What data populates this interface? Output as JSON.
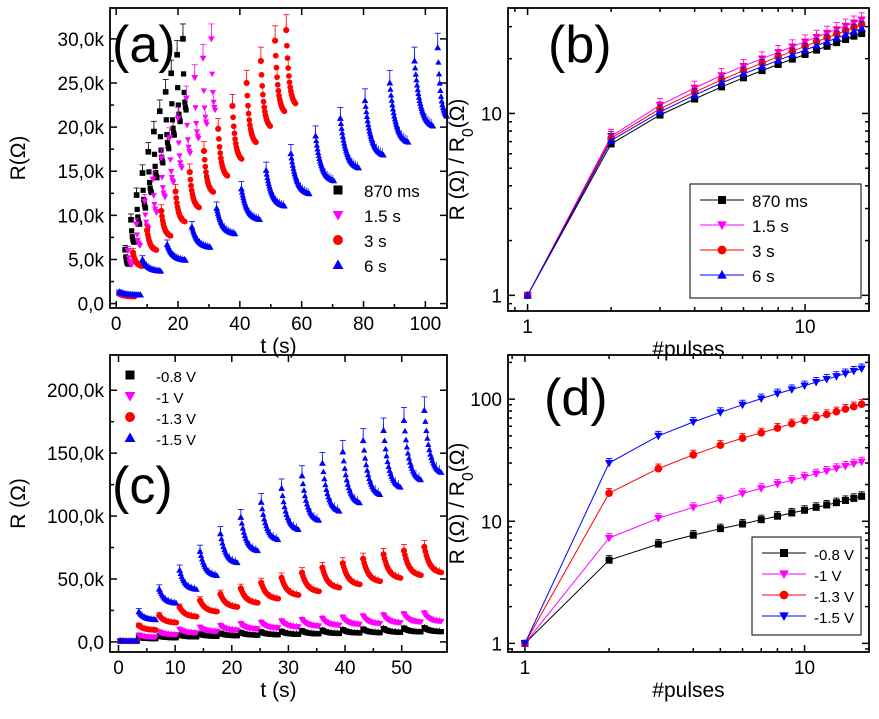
{
  "colors": {
    "black": "#000000",
    "magenta": "#ff00ff",
    "red": "#ff0000",
    "blue": "#0000ff"
  },
  "chart_data": [
    {
      "id": "a",
      "panel_label": "(a)",
      "type": "scatter",
      "xlabel": "t (s)",
      "ylabel": "R(Ω)",
      "xscale": "linear",
      "yscale": "linear",
      "xlim": [
        -2,
        107
      ],
      "ylim": [
        -500,
        33500
      ],
      "xticks": [
        0,
        20,
        40,
        60,
        80,
        100
      ],
      "xtick_labels": [
        "0",
        "20",
        "40",
        "60",
        "80",
        "100"
      ],
      "yticks": [
        0,
        5000,
        10000,
        15000,
        20000,
        25000,
        30000
      ],
      "ytick_labels": [
        "0,0",
        "5,0k",
        "10,0k",
        "15,0k",
        "20,0k",
        "25,0k",
        "30,0k"
      ],
      "legend_position": "right",
      "legend_box": false,
      "series": [
        {
          "name": "870 ms",
          "color": "black",
          "marker": "square",
          "segments": [
            [
              1,
              1200,
              4
            ],
            [
              2.9,
              6100,
              1
            ],
            [
              4.8,
              9500,
              1
            ],
            [
              6.6,
              12300,
              1
            ],
            [
              8.5,
              14800,
              1
            ],
            [
              10.4,
              17200,
              1
            ],
            [
              12.2,
              19500,
              1
            ],
            [
              14.1,
              21800,
              1
            ],
            [
              16,
              24000,
              1
            ],
            [
              17.8,
              26100,
              1
            ],
            [
              19.7,
              28200,
              1
            ],
            [
              21.6,
              30000,
              1
            ]
          ]
        },
        {
          "name": "1.5 s",
          "color": "magenta",
          "marker": "triangle-down",
          "segments": [
            [
              1,
              1200,
              4
            ],
            [
              3.8,
              6000,
              1.2
            ],
            [
              6.5,
              9000,
              1.2
            ],
            [
              9.2,
              11600,
              1.2
            ],
            [
              11.9,
              14100,
              1.2
            ],
            [
              14.6,
              16500,
              1.2
            ],
            [
              17.3,
              18800,
              1.2
            ],
            [
              20,
              21000,
              1.2
            ],
            [
              22.7,
              23300,
              1.2
            ],
            [
              25.4,
              25600,
              1.2
            ],
            [
              28.1,
              27800,
              1.2
            ],
            [
              30.8,
              30000,
              1.2
            ]
          ]
        },
        {
          "name": "3 s",
          "color": "red",
          "marker": "circle",
          "segments": [
            [
              1,
              1100,
              5
            ],
            [
              5.4,
              5800,
              3
            ],
            [
              10,
              8300,
              3
            ],
            [
              14.6,
              10500,
              3
            ],
            [
              19.2,
              12700,
              3
            ],
            [
              23.8,
              14900,
              3
            ],
            [
              28.4,
              17300,
              3
            ],
            [
              33,
              19800,
              3
            ],
            [
              37.6,
              22400,
              3
            ],
            [
              42.2,
              25000,
              3
            ],
            [
              46.8,
              27500,
              3
            ],
            [
              51.4,
              29800,
              3
            ],
            [
              55,
              31000,
              3
            ]
          ]
        },
        {
          "name": "6 s",
          "color": "blue",
          "marker": "triangle-up",
          "segments": [
            [
              1,
              1300,
              7
            ],
            [
              8.5,
              5000,
              6
            ],
            [
              16.5,
              6700,
              6
            ],
            [
              24.5,
              8700,
              6
            ],
            [
              32.5,
              10800,
              6
            ],
            [
              40.5,
              13000,
              6
            ],
            [
              48.5,
              15100,
              6
            ],
            [
              56.5,
              17000,
              6
            ],
            [
              64.5,
              19000,
              6
            ],
            [
              72.5,
              21000,
              6
            ],
            [
              80.5,
              23000,
              6
            ],
            [
              88.5,
              25000,
              6
            ],
            [
              96.5,
              27500,
              6
            ],
            [
              104,
              29000,
              3
            ]
          ]
        }
      ]
    },
    {
      "id": "b",
      "panel_label": "(b)",
      "type": "line",
      "xlabel": "#pulses",
      "ylabel": "R (Ω) / R0(Ω)",
      "xscale": "log",
      "yscale": "log",
      "xlim": [
        0.85,
        17
      ],
      "ylim": [
        0.82,
        38
      ],
      "xticks": [
        1,
        10
      ],
      "xtick_labels": [
        "1",
        "10"
      ],
      "yticks": [
        1,
        10
      ],
      "ytick_labels": [
        "1",
        "10"
      ],
      "legend_position": "bottom-right",
      "legend_box": true,
      "x": [
        1,
        2,
        3,
        4,
        5,
        6,
        7,
        8,
        9,
        10,
        11,
        12,
        13,
        14,
        15,
        16
      ],
      "series": [
        {
          "name": "870 ms",
          "color": "black",
          "marker": "square",
          "values": [
            1,
            6.8,
            9.8,
            12.0,
            14.0,
            15.7,
            17.2,
            18.6,
            19.9,
            21.1,
            22.3,
            23.4,
            24.5,
            25.5,
            26.6,
            27.5
          ]
        },
        {
          "name": "1.5 s",
          "color": "magenta",
          "marker": "triangle-down",
          "values": [
            1,
            7.5,
            11.1,
            13.8,
            16.2,
            18.2,
            20.0,
            21.7,
            23.3,
            24.8,
            26.3,
            27.7,
            29.0,
            30.3,
            31.5,
            32.8
          ]
        },
        {
          "name": "3 s",
          "color": "red",
          "marker": "circle",
          "values": [
            1,
            7.3,
            10.6,
            13.1,
            15.3,
            17.2,
            18.9,
            20.5,
            22.0,
            23.4,
            24.8,
            26.1,
            27.3,
            28.5,
            29.7,
            30.8
          ]
        },
        {
          "name": "6 s",
          "color": "blue",
          "marker": "triangle-up",
          "values": [
            1,
            7.1,
            10.2,
            12.6,
            14.7,
            16.5,
            18.1,
            19.6,
            21.0,
            22.3,
            23.6,
            24.8,
            26.0,
            27.1,
            28.2,
            29.3
          ]
        }
      ]
    },
    {
      "id": "c",
      "panel_label": "(c)",
      "type": "scatter",
      "xlabel": "t (s)",
      "ylabel": "R (Ω)",
      "xscale": "linear",
      "yscale": "linear",
      "xlim": [
        -1.5,
        58
      ],
      "ylim": [
        -8000,
        228000
      ],
      "xticks": [
        0,
        10,
        20,
        30,
        40,
        50
      ],
      "xtick_labels": [
        "0",
        "10",
        "20",
        "30",
        "40",
        "50"
      ],
      "yticks": [
        0,
        50000,
        100000,
        150000,
        200000
      ],
      "ytick_labels": [
        "0,0",
        "50,0k",
        "100,0k",
        "150,0k",
        "200,0k"
      ],
      "legend_position": "top-left",
      "legend_box": false,
      "series": [
        {
          "name": "-0.8 V",
          "color": "black",
          "marker": "square",
          "segments": [
            [
              0.3,
              800,
              3
            ],
            [
              3.6,
              3600,
              3
            ],
            [
              7.2,
              4600,
              3
            ],
            [
              10.8,
              5500,
              3
            ],
            [
              14.4,
              6200,
              3
            ],
            [
              18,
              6800,
              3
            ],
            [
              21.6,
              7400,
              3
            ],
            [
              25.2,
              7900,
              3
            ],
            [
              28.8,
              8300,
              3
            ],
            [
              32.4,
              8800,
              3
            ],
            [
              36,
              9200,
              3
            ],
            [
              39.6,
              9700,
              3
            ],
            [
              43.2,
              10100,
              3
            ],
            [
              46.8,
              10500,
              3
            ],
            [
              50.4,
              10900,
              3
            ],
            [
              54,
              11200,
              3
            ]
          ]
        },
        {
          "name": "-1 V",
          "color": "magenta",
          "marker": "triangle-down",
          "segments": [
            [
              0.3,
              800,
              3
            ],
            [
              3.6,
              5400,
              3
            ],
            [
              7.2,
              8000,
              3
            ],
            [
              10.8,
              10000,
              3
            ],
            [
              14.4,
              11600,
              3
            ],
            [
              18,
              13000,
              3
            ],
            [
              21.6,
              14300,
              3
            ],
            [
              25.2,
              15400,
              3
            ],
            [
              28.8,
              16500,
              3
            ],
            [
              32.4,
              17500,
              3
            ],
            [
              36,
              18400,
              3
            ],
            [
              39.6,
              19300,
              3
            ],
            [
              43.2,
              20200,
              3
            ],
            [
              46.8,
              21000,
              3
            ],
            [
              50.4,
              21800,
              3
            ],
            [
              54,
              22500,
              3
            ]
          ]
        },
        {
          "name": "-1.3 V",
          "color": "red",
          "marker": "circle",
          "segments": [
            [
              0.3,
              800,
              3
            ],
            [
              3.6,
              13000,
              3
            ],
            [
              7.2,
              21000,
              3
            ],
            [
              10.8,
              27500,
              3
            ],
            [
              14.4,
              33000,
              3
            ],
            [
              18,
              38000,
              3
            ],
            [
              21.6,
              42500,
              3
            ],
            [
              25.2,
              47000,
              3
            ],
            [
              28.8,
              51000,
              3
            ],
            [
              32.4,
              55000,
              3
            ],
            [
              36,
              59000,
              3
            ],
            [
              39.6,
              62500,
              3
            ],
            [
              43.2,
              66000,
              3
            ],
            [
              46.8,
              69500,
              3
            ],
            [
              50.4,
              72500,
              3
            ],
            [
              54,
              75500,
              3
            ]
          ]
        },
        {
          "name": "-1.5 V",
          "color": "blue",
          "marker": "triangle-up",
          "segments": [
            [
              0.3,
              800,
              3
            ],
            [
              3.6,
              24000,
              3
            ],
            [
              7.2,
              42000,
              3
            ],
            [
              10.8,
              57000,
              3
            ],
            [
              14.4,
              72000,
              3
            ],
            [
              18,
              86000,
              3
            ],
            [
              21.6,
              99000,
              3
            ],
            [
              25.2,
              111000,
              3
            ],
            [
              28.8,
              122000,
              3
            ],
            [
              32.4,
              132000,
              3
            ],
            [
              36,
              142000,
              3
            ],
            [
              39.6,
              151000,
              3
            ],
            [
              43.2,
              160000,
              3
            ],
            [
              46.8,
              168000,
              3
            ],
            [
              50.4,
              176000,
              3
            ],
            [
              54,
              184000,
              3
            ]
          ]
        }
      ]
    },
    {
      "id": "d",
      "panel_label": "(d)",
      "type": "line",
      "xlabel": "#pulses",
      "ylabel": "R (Ω) / R0(Ω)",
      "xscale": "log",
      "yscale": "log",
      "xlim": [
        0.87,
        17
      ],
      "ylim": [
        0.85,
        230
      ],
      "xticks": [
        1,
        10
      ],
      "xtick_labels": [
        "1",
        "10"
      ],
      "yticks": [
        1,
        10,
        100
      ],
      "ytick_labels": [
        "1",
        "10",
        "100"
      ],
      "legend_position": "bottom-right",
      "legend_box": true,
      "x": [
        1,
        2,
        3,
        4,
        5,
        6,
        7,
        8,
        9,
        10,
        11,
        12,
        13,
        14,
        15,
        16
      ],
      "series": [
        {
          "name": "-0.8 V",
          "color": "black",
          "marker": "square",
          "values": [
            1,
            4.8,
            6.5,
            7.7,
            8.7,
            9.5,
            10.3,
            11.0,
            11.7,
            12.3,
            13.0,
            13.6,
            14.2,
            14.8,
            15.4,
            16.0
          ]
        },
        {
          "name": "-1 V",
          "color": "magenta",
          "marker": "triangle-down",
          "values": [
            1,
            7.3,
            10.6,
            13.0,
            15.0,
            16.9,
            18.6,
            20.2,
            21.7,
            23.1,
            24.5,
            25.8,
            27.1,
            28.3,
            29.5,
            30.7
          ]
        },
        {
          "name": "-1.3 V",
          "color": "red",
          "marker": "circle",
          "values": [
            1,
            17,
            27,
            35,
            42,
            48,
            53,
            58,
            63,
            67,
            71,
            75,
            79,
            83,
            87,
            91
          ]
        },
        {
          "name": "-1.5 V",
          "color": "blue",
          "marker": "triangle-down",
          "values": [
            1,
            30,
            50,
            65,
            78,
            90,
            101,
            111,
            120,
            129,
            138,
            146,
            154,
            162,
            170,
            178
          ]
        }
      ]
    }
  ]
}
